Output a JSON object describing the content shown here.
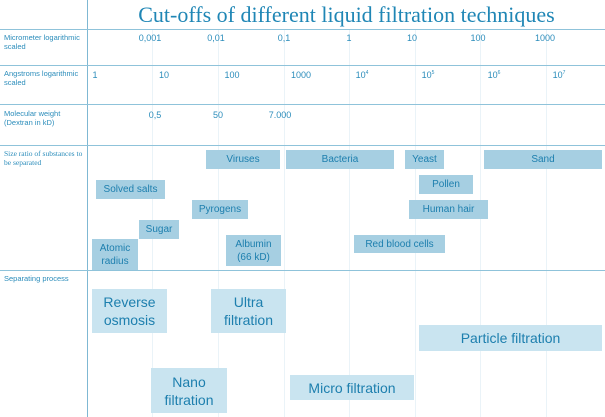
{
  "title": "Cut-offs of different liquid filtration techniques",
  "rows": {
    "micrometer": "Micrometer logarithmic scaled",
    "angstroms": "Angstroms logarithmic scaled",
    "molecular": "Molecular weight (Dextran in kD)",
    "size": "Size ratio of substances to be separated",
    "process": "Separating process"
  },
  "micrometer_ticks": [
    "0,001",
    "0,01",
    "0,1",
    "1",
    "10",
    "100",
    "1000"
  ],
  "angstrom_ticks": {
    "a1": "1",
    "a10": "10",
    "a100": "100",
    "a1000": "1000",
    "e4": "4",
    "e5": "5",
    "e6": "6",
    "e7": "7",
    "base": "10"
  },
  "molecular_ticks": [
    "0,5",
    "50",
    "7.000"
  ],
  "substances": {
    "viruses": "Viruses",
    "bacteria": "Bacteria",
    "yeast": "Yeast",
    "sand": "Sand",
    "solved_salts": "Solved salts",
    "pollen": "Pollen",
    "pyrogens": "Pyrogens",
    "human_hair": "Human hair",
    "sugar": "Sugar",
    "albumin_1": "Albumin",
    "albumin_2": "(66 kD)",
    "red_blood_cells": "Red blood cells",
    "atomic_1": "Atomic",
    "atomic_2": "radius"
  },
  "processes": {
    "ro_1": "Reverse",
    "ro_2": "osmosis",
    "uf_1": "Ultra",
    "uf_2": "filtration",
    "particle": "Particle filtration",
    "nf_1": "Nano",
    "nf_2": "filtration",
    "micro": "Micro filtration"
  },
  "colors": {
    "text": "#1f86b5",
    "box": "#a6cfe2",
    "process_box": "#c9e4f0"
  }
}
